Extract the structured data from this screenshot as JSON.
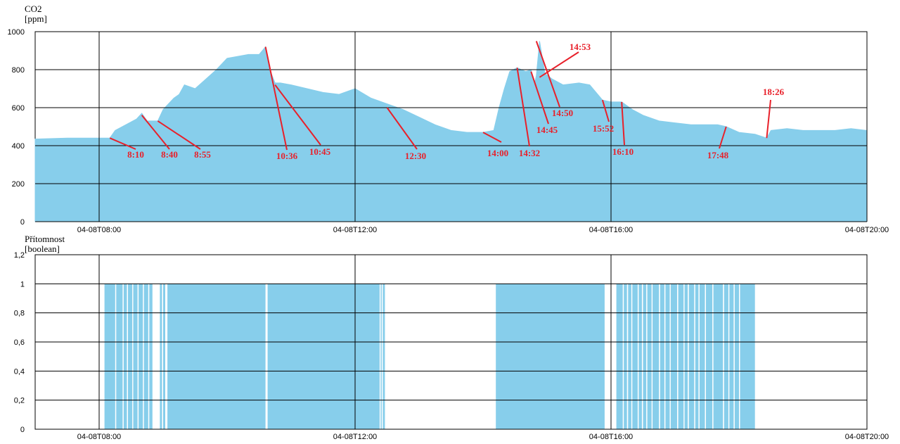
{
  "colors": {
    "fill": "#87CEEB",
    "grid": "#000000",
    "annotation": "#e8202a",
    "background": "#ffffff"
  },
  "chart_data": [
    {
      "type": "area",
      "ylabel_line1": "CO2",
      "ylabel_line2": "[ppm]",
      "x_range": [
        "04-08T07:00",
        "04-08T20:00"
      ],
      "ylim": [
        0,
        1000
      ],
      "yticks": [
        "0",
        "200",
        "400",
        "600",
        "800",
        "1000"
      ],
      "ytick_values": [
        0,
        200,
        400,
        600,
        800,
        1000
      ],
      "xticks": [
        "04-08T08:00",
        "04-08T12:00",
        "04-08T16:00",
        "04-08T20:00"
      ],
      "xtick_values": [
        "08:00",
        "12:00",
        "16:00",
        "20:00"
      ],
      "grid": true,
      "series": [
        {
          "x": [
            "07:00",
            "07:30",
            "08:00",
            "08:10",
            "08:15",
            "08:25",
            "08:35",
            "08:40",
            "08:45",
            "08:55",
            "09:00",
            "09:10",
            "09:15",
            "09:20",
            "09:30",
            "09:40",
            "09:50",
            "10:00",
            "10:10",
            "10:20",
            "10:30",
            "10:36",
            "10:40",
            "10:45",
            "10:50",
            "11:00",
            "11:15",
            "11:30",
            "11:45",
            "12:00",
            "12:15",
            "12:30",
            "12:45",
            "13:00",
            "13:15",
            "13:30",
            "13:45",
            "14:00",
            "14:10",
            "14:15",
            "14:20",
            "14:25",
            "14:32",
            "14:40",
            "14:45",
            "14:48",
            "14:50",
            "14:53",
            "14:58",
            "15:05",
            "15:15",
            "15:30",
            "15:40",
            "15:52",
            "16:00",
            "16:10",
            "16:20",
            "16:30",
            "16:45",
            "17:00",
            "17:15",
            "17:30",
            "17:40",
            "17:48",
            "18:00",
            "18:15",
            "18:26",
            "18:30",
            "18:45",
            "19:00",
            "19:15",
            "19:30",
            "19:45",
            "20:00"
          ],
          "values": [
            435,
            440,
            440,
            440,
            480,
            510,
            540,
            570,
            530,
            530,
            590,
            650,
            670,
            720,
            700,
            750,
            800,
            860,
            870,
            880,
            880,
            920,
            800,
            730,
            730,
            720,
            700,
            680,
            670,
            700,
            650,
            620,
            590,
            550,
            510,
            480,
            470,
            470,
            480,
            600,
            700,
            790,
            810,
            790,
            800,
            720,
            770,
            950,
            780,
            750,
            720,
            730,
            720,
            640,
            630,
            630,
            590,
            560,
            530,
            520,
            510,
            510,
            510,
            500,
            470,
            460,
            440,
            480,
            490,
            480,
            480,
            480,
            490,
            480
          ]
        }
      ],
      "annotations": [
        {
          "label": "8:10",
          "x": "08:10",
          "y": 440
        },
        {
          "label": "8:40",
          "x": "08:40",
          "y": 560
        },
        {
          "label": "8:55",
          "x": "08:55",
          "y": 530
        },
        {
          "label": "10:36",
          "x": "10:36",
          "y": 920
        },
        {
          "label": "10:45",
          "x": "10:45",
          "y": 720
        },
        {
          "label": "12:30",
          "x": "12:30",
          "y": 600
        },
        {
          "label": "14:00",
          "x": "14:00",
          "y": 470
        },
        {
          "label": "14:32",
          "x": "14:32",
          "y": 810
        },
        {
          "label": "14:45",
          "x": "14:45",
          "y": 790
        },
        {
          "label": "14:50",
          "x": "14:50",
          "y": 950
        },
        {
          "label": "14:53",
          "x": "14:53",
          "y": 760
        },
        {
          "label": "15:52",
          "x": "15:52",
          "y": 640
        },
        {
          "label": "16:10",
          "x": "16:10",
          "y": 630
        },
        {
          "label": "17:48",
          "x": "17:48",
          "y": 500
        },
        {
          "label": "18:26",
          "x": "18:26",
          "y": 440
        }
      ]
    },
    {
      "type": "area",
      "ylabel_line1": "Přítomnost",
      "ylabel_line2": "[boolean]",
      "x_range": [
        "04-08T07:00",
        "04-08T20:00"
      ],
      "ylim": [
        0,
        1.2
      ],
      "yticks": [
        "0",
        "0,2",
        "0,4",
        "0,6",
        "0,8",
        "1",
        "1,2"
      ],
      "ytick_values": [
        0,
        0.2,
        0.4,
        0.6,
        0.8,
        1,
        1.2
      ],
      "xticks": [
        "04-08T08:00",
        "04-08T12:00",
        "04-08T16:00",
        "04-08T20:00"
      ],
      "xtick_values": [
        "08:00",
        "12:00",
        "16:00",
        "20:00"
      ],
      "grid": true,
      "series": [
        {
          "value": 1,
          "on_intervals": [
            [
              "08:05",
              "08:15"
            ],
            [
              "08:16",
              "08:22"
            ],
            [
              "08:23",
              "08:26"
            ],
            [
              "08:27",
              "08:31"
            ],
            [
              "08:32",
              "08:36"
            ],
            [
              "08:37",
              "08:41"
            ],
            [
              "08:42",
              "08:46"
            ],
            [
              "08:47",
              "08:50"
            ],
            [
              "08:57",
              "08:59"
            ],
            [
              "09:00",
              "09:02"
            ],
            [
              "09:04",
              "10:36"
            ],
            [
              "10:38",
              "12:23"
            ],
            [
              "12:24",
              "12:25"
            ],
            [
              "12:26",
              "12:28"
            ],
            [
              "14:12",
              "15:54"
            ],
            [
              "16:05",
              "16:11"
            ],
            [
              "16:12",
              "16:15"
            ],
            [
              "16:16",
              "16:19"
            ],
            [
              "16:20",
              "16:25"
            ],
            [
              "16:26",
              "16:29"
            ],
            [
              "16:30",
              "16:33"
            ],
            [
              "16:34",
              "16:38"
            ],
            [
              "16:39",
              "16:45"
            ],
            [
              "16:46",
              "16:50"
            ],
            [
              "16:51",
              "16:55"
            ],
            [
              "16:56",
              "17:02"
            ],
            [
              "17:03",
              "17:08"
            ],
            [
              "17:09",
              "17:12"
            ],
            [
              "17:13",
              "17:18"
            ],
            [
              "17:19",
              "17:22"
            ],
            [
              "17:23",
              "17:28"
            ],
            [
              "17:29",
              "17:35"
            ],
            [
              "17:36",
              "17:45"
            ],
            [
              "17:46",
              "17:50"
            ],
            [
              "17:51",
              "17:55"
            ],
            [
              "17:56",
              "18:00"
            ],
            [
              "18:01",
              "18:15"
            ]
          ]
        }
      ]
    }
  ]
}
